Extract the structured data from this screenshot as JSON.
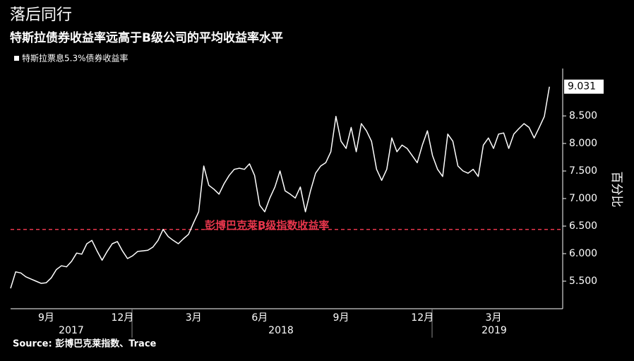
{
  "chart_data": {
    "type": "line",
    "title": "落后同行",
    "subtitle": "特斯拉债券收益率远高于B级公司的平均收益率水平",
    "y_axis_label": "百分比",
    "source": "Source: 彭博巴克莱指数、Trace",
    "categories": [
      null,
      null,
      null,
      null,
      null,
      null,
      null,
      "9月",
      null,
      null,
      null,
      null,
      null,
      null,
      null,
      null,
      null,
      null,
      null,
      null,
      null,
      null,
      "12月",
      null,
      null,
      null,
      null,
      null,
      null,
      null,
      null,
      null,
      null,
      null,
      null,
      null,
      "3月",
      null,
      null,
      null,
      null,
      null,
      null,
      null,
      null,
      null,
      null,
      null,
      null,
      "6月",
      null,
      null,
      null,
      null,
      null,
      null,
      null,
      null,
      null,
      null,
      null,
      null,
      null,
      null,
      null,
      "9月",
      null,
      null,
      null,
      null,
      null,
      null,
      null,
      null,
      null,
      null,
      null,
      null,
      null,
      null,
      null,
      "12月",
      null,
      null,
      null,
      null,
      null,
      null,
      null,
      null,
      null,
      null,
      null,
      null,
      null,
      "3月",
      null,
      null,
      null,
      null,
      null,
      null,
      null,
      null,
      null,
      null,
      null
    ],
    "year_labels": [
      "2017",
      "2018",
      "2019"
    ],
    "series": [
      {
        "name": "特斯拉票息5.3%债券收益率",
        "color": "#ffffff",
        "values": [
          5.37,
          5.67,
          5.65,
          5.58,
          5.54,
          5.5,
          5.46,
          5.47,
          5.56,
          5.71,
          5.78,
          5.76,
          5.86,
          6.01,
          5.99,
          6.18,
          6.24,
          6.05,
          5.88,
          6.04,
          6.18,
          6.22,
          6.05,
          5.91,
          5.96,
          6.04,
          6.05,
          6.06,
          6.12,
          6.24,
          6.44,
          6.31,
          6.24,
          6.18,
          6.27,
          6.35,
          6.56,
          6.76,
          7.59,
          7.24,
          7.17,
          7.08,
          7.27,
          7.42,
          7.53,
          7.55,
          7.53,
          7.63,
          7.42,
          6.88,
          6.76,
          7.01,
          7.21,
          7.5,
          7.14,
          7.08,
          7.01,
          7.21,
          6.76,
          7.14,
          7.46,
          7.59,
          7.65,
          7.85,
          8.49,
          8.04,
          7.91,
          8.29,
          7.85,
          8.36,
          8.23,
          8.04,
          7.53,
          7.33,
          7.53,
          8.1,
          7.85,
          7.97,
          7.91,
          7.78,
          7.65,
          7.97,
          8.23,
          7.78,
          7.53,
          7.4,
          8.17,
          8.04,
          7.59,
          7.5,
          7.46,
          7.53,
          7.4,
          7.97,
          8.1,
          7.91,
          8.17,
          8.19,
          7.91,
          8.17,
          8.27,
          8.36,
          8.29,
          8.1,
          8.29,
          8.49,
          9.031
        ]
      }
    ],
    "reference_lines": [
      {
        "value": 6.44,
        "label": "彭博巴克莱B级指数收益率",
        "color": "#e8364c"
      }
    ],
    "ylim": [
      5.0,
      9.36
    ],
    "yticks": [
      {
        "value": 5.5,
        "label": "5.500"
      },
      {
        "value": 6.0,
        "label": "6.000"
      },
      {
        "value": 6.5,
        "label": "6.500"
      },
      {
        "value": 7.0,
        "label": "7.000"
      },
      {
        "value": 7.5,
        "label": "7.500"
      },
      {
        "value": 8.0,
        "label": "8.000"
      },
      {
        "value": 8.5,
        "label": "8.500"
      }
    ],
    "grid": false
  }
}
